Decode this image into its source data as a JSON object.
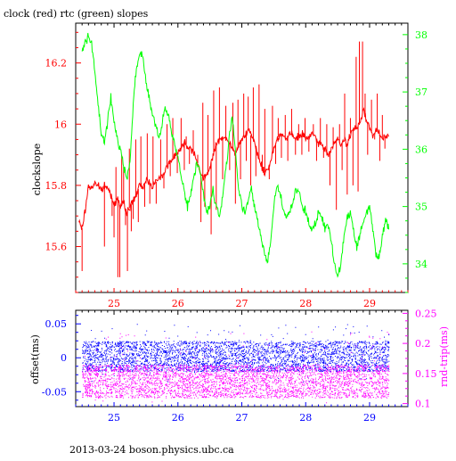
{
  "chart_data": [
    {
      "type": "line",
      "title": "clock (red) rtc (green) slopes",
      "xlabel": "",
      "ylabel": "clockslope",
      "xlim": [
        24.4,
        29.6
      ],
      "x_ticks": [
        "25",
        "26",
        "27",
        "28",
        "29"
      ],
      "ylim": [
        15.45,
        16.33
      ],
      "y_ticks": [
        "15.6",
        "15.8",
        "16",
        "16.2"
      ],
      "y2lim": [
        33.5,
        38.2
      ],
      "y2_ticks": [
        "34",
        "35",
        "36",
        "37",
        "38"
      ],
      "colors": {
        "left_axis": "#ff0000",
        "right_axis": "#00ff00",
        "bottom_axis": "#ff0000",
        "frame": "#000000"
      },
      "series": [
        {
          "color": "#ff0000",
          "axis": "left",
          "x": [
            24.45,
            24.5,
            24.55,
            24.6,
            24.65,
            24.7,
            24.75,
            24.8,
            24.85,
            24.9,
            24.95,
            25.0,
            25.05,
            25.1,
            25.15,
            25.2,
            25.25,
            25.3,
            25.35,
            25.4,
            25.45,
            25.5,
            25.55,
            25.6,
            25.65,
            25.7,
            25.75,
            25.8,
            25.85,
            25.9,
            25.95,
            26.0,
            26.05,
            26.1,
            26.15,
            26.2,
            26.25,
            26.3,
            26.35,
            26.4,
            26.45,
            26.5,
            26.55,
            26.6,
            26.65,
            26.7,
            26.75,
            26.8,
            26.85,
            26.9,
            26.95,
            27.0,
            27.05,
            27.1,
            27.15,
            27.2,
            27.25,
            27.3,
            27.35,
            27.4,
            27.45,
            27.5,
            27.55,
            27.6,
            27.65,
            27.7,
            27.75,
            27.8,
            27.85,
            27.9,
            27.95,
            28.0,
            28.05,
            28.1,
            28.15,
            28.2,
            28.25,
            28.3,
            28.35,
            28.4,
            28.45,
            28.5,
            28.55,
            28.6,
            28.65,
            28.7,
            28.75,
            28.8,
            28.85,
            28.9,
            28.95,
            29.0,
            29.05,
            29.1,
            29.15,
            29.2,
            29.25,
            29.3
          ],
          "y": [
            15.68,
            15.66,
            15.72,
            15.8,
            15.79,
            15.81,
            15.8,
            15.78,
            15.8,
            15.79,
            15.77,
            15.74,
            15.76,
            15.73,
            15.74,
            15.71,
            15.73,
            15.75,
            15.77,
            15.8,
            15.79,
            15.82,
            15.81,
            15.8,
            15.81,
            15.82,
            15.83,
            15.85,
            15.87,
            15.88,
            15.9,
            15.91,
            15.92,
            15.94,
            15.93,
            15.92,
            15.91,
            15.88,
            15.84,
            15.82,
            15.83,
            15.86,
            15.9,
            15.93,
            15.95,
            15.96,
            15.95,
            15.94,
            15.92,
            15.9,
            15.93,
            15.95,
            15.97,
            15.98,
            15.96,
            15.94,
            15.9,
            15.87,
            15.84,
            15.85,
            15.88,
            15.92,
            15.95,
            15.97,
            15.96,
            15.95,
            15.97,
            15.96,
            15.95,
            15.96,
            15.97,
            15.95,
            15.96,
            15.97,
            15.95,
            15.94,
            15.93,
            15.92,
            15.9,
            15.92,
            15.94,
            15.95,
            15.93,
            15.95,
            15.93,
            15.97,
            15.98,
            15.99,
            16.0,
            16.05,
            16.02,
            15.99,
            15.96,
            15.98,
            15.97,
            15.95,
            15.96,
            15.96
          ],
          "spikes": [
            [
              24.5,
              15.52
            ],
            [
              24.85,
              15.6
            ],
            [
              24.97,
              15.7
            ],
            [
              25.0,
              15.63
            ],
            [
              25.03,
              15.86
            ],
            [
              25.06,
              15.5
            ],
            [
              25.09,
              15.5
            ],
            [
              25.12,
              15.9
            ],
            [
              25.15,
              15.86
            ],
            [
              25.18,
              15.67
            ],
            [
              25.21,
              15.52
            ],
            [
              25.24,
              15.92
            ],
            [
              25.27,
              15.65
            ],
            [
              25.3,
              15.69
            ],
            [
              25.34,
              15.95
            ],
            [
              25.38,
              15.68
            ],
            [
              25.42,
              15.96
            ],
            [
              25.48,
              15.73
            ],
            [
              25.52,
              15.97
            ],
            [
              25.56,
              15.74
            ],
            [
              25.61,
              15.96
            ],
            [
              25.66,
              15.74
            ],
            [
              25.73,
              15.95
            ],
            [
              25.78,
              15.79
            ],
            [
              25.83,
              16.0
            ],
            [
              25.88,
              15.83
            ],
            [
              25.92,
              16.02
            ],
            [
              25.99,
              15.84
            ],
            [
              26.05,
              16.02
            ],
            [
              26.1,
              15.85
            ],
            [
              26.13,
              15.96
            ],
            [
              26.18,
              15.87
            ],
            [
              26.24,
              15.98
            ],
            [
              26.31,
              15.9
            ],
            [
              26.36,
              15.68
            ],
            [
              26.39,
              16.07
            ],
            [
              26.42,
              15.73
            ],
            [
              26.47,
              16.03
            ],
            [
              26.52,
              15.64
            ],
            [
              26.56,
              16.11
            ],
            [
              26.6,
              15.72
            ],
            [
              26.65,
              16.12
            ],
            [
              26.7,
              15.82
            ],
            [
              26.75,
              16.06
            ],
            [
              26.81,
              15.85
            ],
            [
              26.86,
              16.07
            ],
            [
              26.9,
              15.74
            ],
            [
              26.94,
              16.08
            ],
            [
              26.98,
              15.82
            ],
            [
              27.03,
              16.1
            ],
            [
              27.07,
              15.88
            ],
            [
              27.1,
              16.09
            ],
            [
              27.14,
              15.8
            ],
            [
              27.18,
              16.12
            ],
            [
              27.22,
              15.83
            ],
            [
              27.27,
              16.13
            ],
            [
              27.32,
              15.9
            ],
            [
              27.36,
              16.05
            ],
            [
              27.43,
              15.82
            ],
            [
              27.48,
              16.06
            ],
            [
              27.53,
              15.87
            ],
            [
              27.57,
              16.02
            ],
            [
              27.62,
              15.89
            ],
            [
              27.68,
              16.03
            ],
            [
              27.72,
              15.88
            ],
            [
              27.78,
              16.05
            ],
            [
              27.84,
              15.9
            ],
            [
              27.89,
              16.0
            ],
            [
              27.94,
              15.9
            ],
            [
              27.99,
              16.02
            ],
            [
              28.05,
              15.91
            ],
            [
              28.12,
              16.0
            ],
            [
              28.17,
              15.88
            ],
            [
              28.23,
              16.02
            ],
            [
              28.28,
              15.89
            ],
            [
              28.33,
              16.0
            ],
            [
              28.38,
              15.8
            ],
            [
              28.43,
              15.99
            ],
            [
              28.48,
              15.72
            ],
            [
              28.53,
              16.0
            ],
            [
              28.57,
              15.85
            ],
            [
              28.61,
              16.1
            ],
            [
              28.65,
              15.77
            ],
            [
              28.7,
              16.02
            ],
            [
              28.74,
              15.8
            ],
            [
              28.79,
              16.22
            ],
            [
              28.82,
              15.78
            ],
            [
              28.84,
              16.27
            ],
            [
              28.89,
              16.27
            ],
            [
              28.93,
              16.1
            ],
            [
              28.97,
              15.9
            ],
            [
              29.03,
              16.08
            ],
            [
              29.08,
              15.95
            ],
            [
              29.12,
              16.1
            ],
            [
              29.16,
              15.88
            ],
            [
              29.2,
              16.03
            ],
            [
              29.24,
              15.92
            ]
          ]
        },
        {
          "color": "#00ff00",
          "axis": "right",
          "x": [
            24.5,
            24.55,
            24.6,
            24.65,
            24.7,
            24.75,
            24.8,
            24.85,
            24.9,
            24.95,
            25.0,
            25.05,
            25.1,
            25.15,
            25.2,
            25.25,
            25.3,
            25.35,
            25.4,
            25.45,
            25.5,
            25.55,
            25.6,
            25.65,
            25.7,
            25.75,
            25.8,
            25.85,
            25.9,
            25.95,
            26.0,
            26.05,
            26.1,
            26.15,
            26.2,
            26.25,
            26.3,
            26.35,
            26.4,
            26.45,
            26.5,
            26.55,
            26.6,
            26.65,
            26.7,
            26.75,
            26.8,
            26.85,
            26.9,
            26.95,
            27.0,
            27.05,
            27.1,
            27.15,
            27.2,
            27.25,
            27.3,
            27.35,
            27.4,
            27.45,
            27.5,
            27.55,
            27.6,
            27.65,
            27.7,
            27.75,
            27.8,
            27.85,
            27.9,
            27.95,
            28.0,
            28.05,
            28.1,
            28.15,
            28.2,
            28.25,
            28.3,
            28.35,
            28.4,
            28.45,
            28.5,
            28.55,
            28.6,
            28.65,
            28.7,
            28.75,
            28.8,
            28.85,
            28.9,
            28.95,
            29.0,
            29.05,
            29.1,
            29.15,
            29.2,
            29.25,
            29.3
          ],
          "y": [
            37.75,
            37.9,
            37.95,
            37.85,
            37.3,
            36.8,
            36.3,
            36.1,
            36.5,
            36.9,
            36.5,
            36.2,
            36.0,
            35.7,
            35.5,
            35.8,
            36.8,
            37.4,
            37.7,
            37.6,
            37.2,
            36.9,
            36.6,
            36.4,
            36.2,
            36.4,
            36.7,
            36.6,
            36.3,
            36.1,
            35.9,
            35.5,
            35.3,
            35.0,
            35.2,
            35.5,
            35.8,
            35.6,
            35.2,
            34.9,
            35.0,
            35.3,
            35.0,
            34.8,
            35.2,
            35.6,
            36.2,
            36.6,
            36.0,
            35.3,
            35.0,
            34.9,
            35.1,
            35.3,
            35.0,
            34.7,
            34.5,
            34.2,
            34.0,
            34.4,
            35.0,
            35.4,
            35.2,
            35.0,
            34.8,
            34.9,
            35.1,
            35.3,
            35.2,
            35.0,
            34.9,
            34.7,
            34.6,
            34.7,
            34.9,
            34.8,
            34.6,
            34.7,
            34.4,
            34.0,
            33.8,
            34.0,
            34.5,
            34.8,
            34.9,
            34.6,
            34.3,
            34.5,
            34.7,
            34.9,
            35.0,
            34.6,
            34.2,
            34.1,
            34.5,
            34.8,
            34.6
          ]
        }
      ]
    },
    {
      "type": "scatter",
      "xlabel": "",
      "ylabel": "offset(ms)",
      "y2label": "rnd-trip(ms)",
      "xlim": [
        24.4,
        29.6
      ],
      "x_ticks": [
        "25",
        "26",
        "27",
        "28",
        "29"
      ],
      "ylim": [
        -0.072,
        0.07
      ],
      "y_ticks": [
        "-0.05",
        "0",
        "0.05"
      ],
      "y2lim": [
        0.095,
        0.255
      ],
      "y2_ticks": [
        "0.1",
        "0.15",
        "0.2",
        "0.25"
      ],
      "colors": {
        "left_axis": "#0000ff",
        "right_axis": "#ff00ff",
        "bottom_axis": "#0000ff",
        "frame": "#000000"
      },
      "series": [
        {
          "color": "#0000ff",
          "axis": "left",
          "x_range": [
            24.5,
            29.3
          ],
          "band": [
            -0.02,
            0.025
          ],
          "outliers": [
            -0.035,
            0.05
          ]
        },
        {
          "color": "#ff00ff",
          "axis": "right",
          "x_range": [
            24.5,
            29.3
          ],
          "band": [
            0.11,
            0.165
          ],
          "outliers": [
            0.1,
            0.22
          ]
        }
      ]
    }
  ],
  "footer": {
    "text": "2013-03-24  boson.physics.ubc.ca"
  }
}
